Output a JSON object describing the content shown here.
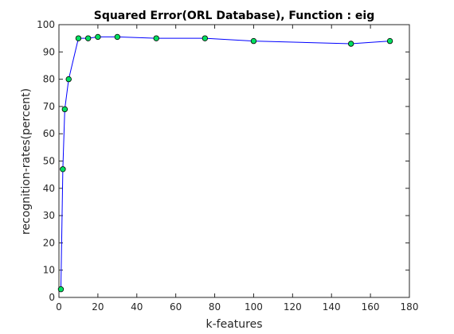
{
  "chart_data": {
    "type": "line",
    "title": "Squared Error(ORL Database), Function : eig",
    "xlabel": "k-features",
    "ylabel": "recognition-rates(percent)",
    "xlim": [
      0,
      180
    ],
    "ylim": [
      0,
      100
    ],
    "xticks": [
      "0",
      "20",
      "40",
      "60",
      "80",
      "100",
      "120",
      "140",
      "160",
      "180"
    ],
    "yticks": [
      "0",
      "10",
      "20",
      "30",
      "40",
      "50",
      "60",
      "70",
      "80",
      "90",
      "100"
    ],
    "grid": false,
    "line_color": "#0000ff",
    "marker_fill": "#00e060",
    "marker_edge": "#000000",
    "series": [
      {
        "x": [
          1,
          2,
          3,
          5,
          10,
          15,
          20,
          30,
          50,
          75,
          100,
          150,
          170
        ],
        "y": [
          3,
          47,
          69,
          80,
          95,
          95,
          95.5,
          95.5,
          95,
          95,
          94,
          93,
          94
        ]
      }
    ]
  }
}
